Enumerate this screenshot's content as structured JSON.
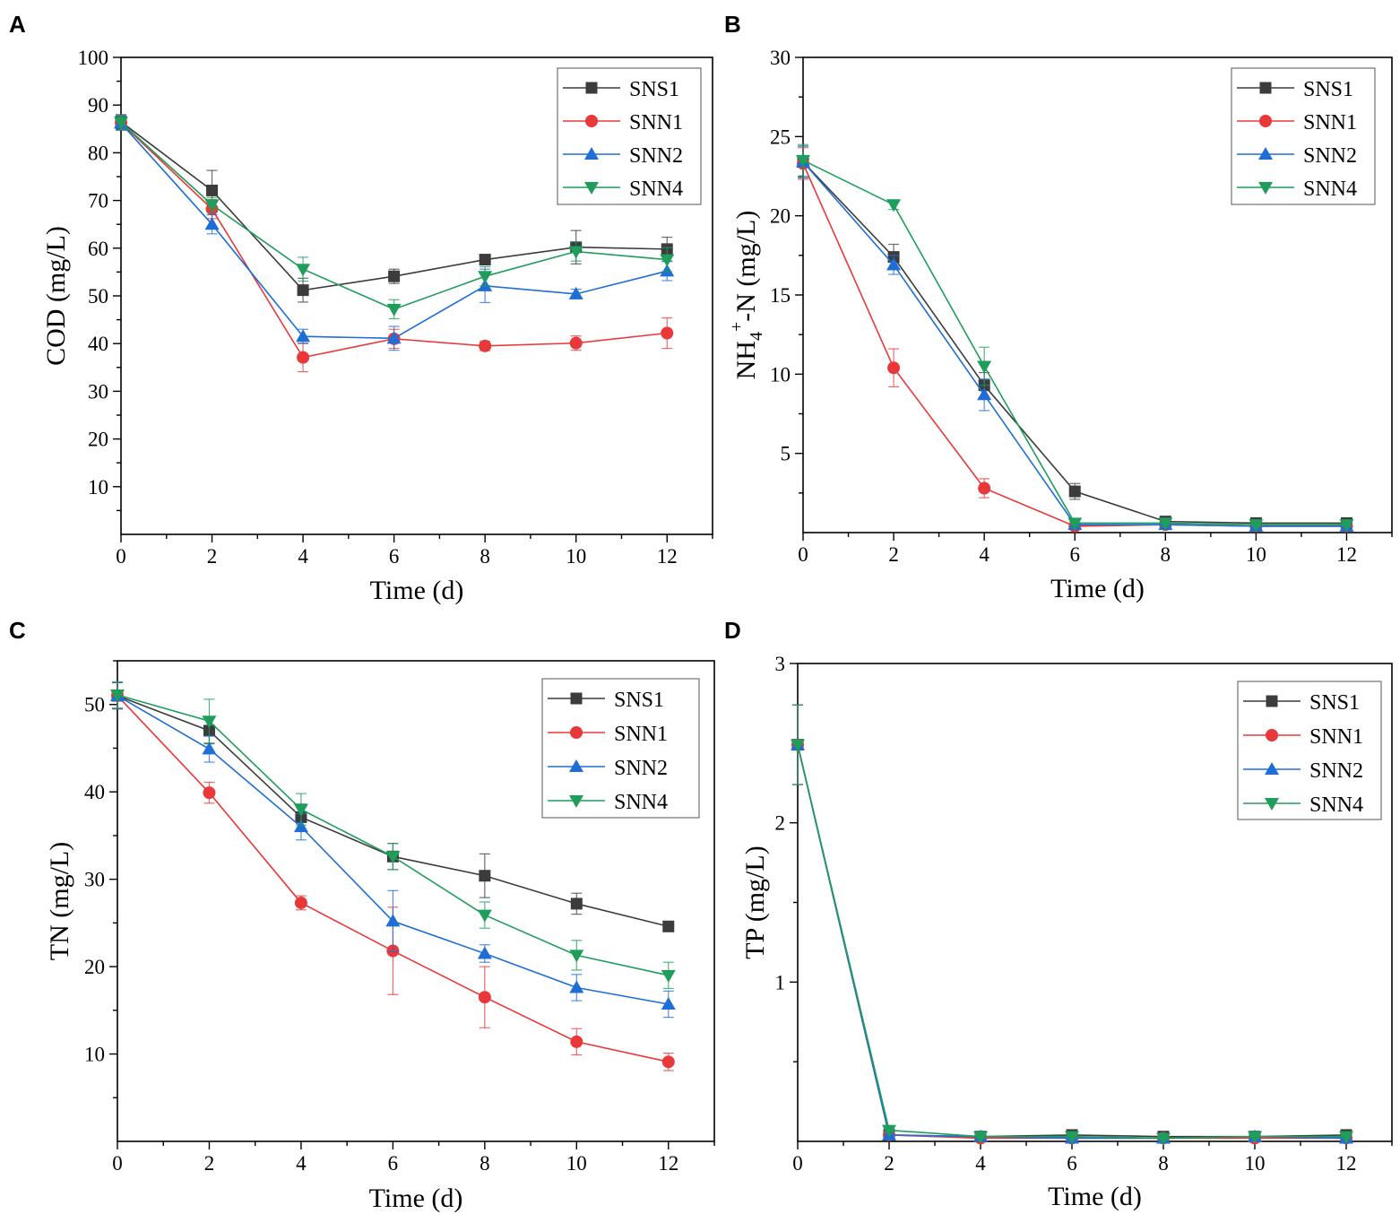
{
  "series_styles": [
    {
      "name": "SNS1",
      "color": "#3c3c3c",
      "marker": "square"
    },
    {
      "name": "SNN1",
      "color": "#e8383a",
      "marker": "circle"
    },
    {
      "name": "SNN2",
      "color": "#1e6ed6",
      "marker": "triangle-up"
    },
    {
      "name": "SNN4",
      "color": "#1e9e5a",
      "marker": "triangle-down"
    }
  ],
  "chart_data": [
    {
      "id": "A",
      "panel_label": "A",
      "type": "line",
      "xlabel": "Time (d)",
      "ylabel": "COD (mg/L)",
      "ylabel_sub": "",
      "ylabel_sup": "",
      "ylabel_tail": "",
      "xlim": [
        0,
        13
      ],
      "ylim": [
        0,
        100
      ],
      "xticks": [
        0,
        2,
        4,
        6,
        8,
        10,
        12
      ],
      "yticks": [
        10,
        20,
        30,
        40,
        50,
        60,
        70,
        80,
        90,
        100
      ],
      "legend_position": "top-right",
      "x": [
        0,
        2,
        4,
        6,
        8,
        10,
        12
      ],
      "series": [
        {
          "name": "SNS1",
          "values": [
            86.5,
            72.1,
            51.2,
            54.1,
            57.6,
            60.2,
            59.8
          ],
          "errors": [
            1.5,
            4.2,
            2.5,
            1.5,
            1.0,
            3.5,
            2.5
          ]
        },
        {
          "name": "SNN1",
          "values": [
            86.3,
            68.2,
            37.1,
            41.0,
            39.5,
            40.1,
            42.2
          ],
          "errors": [
            1.5,
            2.0,
            3.0,
            2.0,
            1.0,
            1.5,
            3.2
          ]
        },
        {
          "name": "SNN2",
          "values": [
            86.2,
            65.0,
            41.5,
            41.1,
            52.1,
            50.4,
            55.2
          ],
          "errors": [
            1.5,
            2.0,
            1.5,
            2.5,
            3.5,
            1.0,
            2.0
          ]
        },
        {
          "name": "SNN4",
          "values": [
            86.4,
            69.1,
            55.6,
            47.2,
            54.1,
            59.3,
            57.6
          ],
          "errors": [
            1.5,
            1.5,
            2.5,
            2.0,
            2.0,
            2.0,
            2.5
          ]
        }
      ]
    },
    {
      "id": "B",
      "panel_label": "B",
      "type": "line",
      "xlabel": "Time (d)",
      "ylabel": "NH",
      "ylabel_sub": "4",
      "ylabel_sup": "+",
      "ylabel_tail": "-N (mg/L)",
      "xlim": [
        0,
        13
      ],
      "ylim": [
        0,
        30
      ],
      "xticks": [
        0,
        2,
        4,
        6,
        8,
        10,
        12
      ],
      "yticks": [
        5,
        10,
        15,
        20,
        25,
        30
      ],
      "legend_position": "top-right",
      "x": [
        0,
        2,
        4,
        6,
        8,
        10,
        12
      ],
      "series": [
        {
          "name": "SNS1",
          "values": [
            23.4,
            17.4,
            9.3,
            2.6,
            0.7,
            0.6,
            0.6
          ],
          "errors": [
            1.0,
            0.8,
            0.8,
            0.5,
            0.2,
            0.2,
            0.2
          ]
        },
        {
          "name": "SNN1",
          "values": [
            23.3,
            10.4,
            2.8,
            0.4,
            0.5,
            0.4,
            0.4
          ],
          "errors": [
            1.0,
            1.2,
            0.6,
            0.2,
            0.2,
            0.1,
            0.1
          ]
        },
        {
          "name": "SNN2",
          "values": [
            23.4,
            16.9,
            8.7,
            0.5,
            0.5,
            0.4,
            0.4
          ],
          "errors": [
            1.0,
            0.6,
            1.0,
            0.2,
            0.2,
            0.1,
            0.1
          ]
        },
        {
          "name": "SNN4",
          "values": [
            23.5,
            20.7,
            10.5,
            0.6,
            0.6,
            0.5,
            0.5
          ],
          "errors": [
            1.0,
            0.3,
            1.2,
            0.2,
            0.2,
            0.1,
            0.1
          ]
        }
      ]
    },
    {
      "id": "C",
      "panel_label": "C",
      "type": "line",
      "xlabel": "Time (d)",
      "ylabel": "TN (mg/L)",
      "ylabel_sub": "",
      "ylabel_sup": "",
      "ylabel_tail": "",
      "xlim": [
        0,
        13
      ],
      "ylim": [
        0,
        55
      ],
      "xticks": [
        0,
        2,
        4,
        6,
        8,
        10,
        12
      ],
      "yticks": [
        10,
        20,
        30,
        40,
        50
      ],
      "legend_position": "top-right",
      "x": [
        0,
        2,
        4,
        6,
        8,
        10,
        12
      ],
      "series": [
        {
          "name": "SNS1",
          "values": [
            51.0,
            47.0,
            37.1,
            32.6,
            30.4,
            27.2,
            24.6
          ],
          "errors": [
            1.5,
            1.5,
            1.5,
            1.5,
            2.5,
            1.2,
            0.5
          ]
        },
        {
          "name": "SNN1",
          "values": [
            51.0,
            39.9,
            27.3,
            21.8,
            16.5,
            11.4,
            9.1
          ],
          "errors": [
            1.5,
            1.2,
            0.8,
            5.0,
            3.5,
            1.5,
            1.0
          ]
        },
        {
          "name": "SNN2",
          "values": [
            51.0,
            44.9,
            36.0,
            25.2,
            21.5,
            17.6,
            15.7
          ],
          "errors": [
            1.5,
            1.5,
            1.5,
            3.5,
            1.0,
            1.5,
            1.5
          ]
        },
        {
          "name": "SNN4",
          "values": [
            51.1,
            48.1,
            38.0,
            32.6,
            25.9,
            21.3,
            19.0
          ],
          "errors": [
            1.5,
            2.5,
            1.8,
            1.5,
            1.5,
            1.7,
            1.5
          ]
        }
      ]
    },
    {
      "id": "D",
      "panel_label": "D",
      "type": "line",
      "xlabel": "Time (d)",
      "ylabel": "TP (mg/L)",
      "ylabel_sub": "",
      "ylabel_sup": "",
      "ylabel_tail": "",
      "xlim": [
        0,
        13
      ],
      "ylim": [
        0,
        3
      ],
      "xticks": [
        0,
        2,
        4,
        6,
        8,
        10,
        12
      ],
      "yticks": [
        1,
        2,
        3
      ],
      "legend_position": "top-right",
      "x": [
        0,
        2,
        4,
        6,
        8,
        10,
        12
      ],
      "series": [
        {
          "name": "SNS1",
          "values": [
            2.49,
            0.04,
            0.03,
            0.04,
            0.03,
            0.03,
            0.04
          ],
          "errors": [
            0.25,
            0.01,
            0.01,
            0.01,
            0.01,
            0.01,
            0.01
          ]
        },
        {
          "name": "SNN1",
          "values": [
            2.49,
            0.04,
            0.02,
            0.02,
            0.02,
            0.02,
            0.02
          ],
          "errors": [
            0.25,
            0.01,
            0.01,
            0.01,
            0.01,
            0.01,
            0.01
          ]
        },
        {
          "name": "SNN2",
          "values": [
            2.49,
            0.04,
            0.03,
            0.02,
            0.02,
            0.03,
            0.02
          ],
          "errors": [
            0.25,
            0.01,
            0.01,
            0.01,
            0.01,
            0.01,
            0.01
          ]
        },
        {
          "name": "SNN4",
          "values": [
            2.49,
            0.07,
            0.03,
            0.03,
            0.02,
            0.03,
            0.03
          ],
          "errors": [
            0.25,
            0.01,
            0.01,
            0.01,
            0.01,
            0.01,
            0.01
          ]
        }
      ]
    }
  ]
}
